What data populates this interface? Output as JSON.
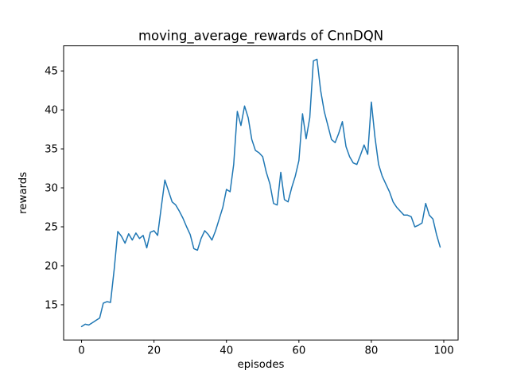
{
  "figure": {
    "background": "#ffffff",
    "text_color": "#000000"
  },
  "chart_data": {
    "type": "line",
    "title": "moving_average_rewards of CnnDQN",
    "xlabel": "episodes",
    "ylabel": "rewards",
    "grid": false,
    "legend": false,
    "xlim": [
      -4.95,
      103.95
    ],
    "ylim": [
      10.48,
      48.22
    ],
    "xticks": [
      0,
      20,
      40,
      60,
      80,
      100
    ],
    "yticks": [
      15,
      20,
      25,
      30,
      35,
      40,
      45
    ],
    "x_start": 0,
    "x_step": 1,
    "series": [
      {
        "name": "moving_average_rewards",
        "color": "#1f77b4",
        "values": [
          12.2,
          12.5,
          12.4,
          12.7,
          13.0,
          13.3,
          15.2,
          15.4,
          15.3,
          19.5,
          24.4,
          23.8,
          22.9,
          24.1,
          23.3,
          24.2,
          23.5,
          23.9,
          22.3,
          24.3,
          24.5,
          23.9,
          27.5,
          31.0,
          29.6,
          28.2,
          27.8,
          27.0,
          26.1,
          25.0,
          24.0,
          22.2,
          22.0,
          23.5,
          24.5,
          24.0,
          23.3,
          24.5,
          26.0,
          27.5,
          29.8,
          29.5,
          33.0,
          39.8,
          38.0,
          40.5,
          39.0,
          36.2,
          34.8,
          34.5,
          34.0,
          32.0,
          30.5,
          28.0,
          27.8,
          32.0,
          28.5,
          28.2,
          30.0,
          31.5,
          33.5,
          39.5,
          36.3,
          39.0,
          46.3,
          46.5,
          42.5,
          39.8,
          38.0,
          36.2,
          35.8,
          37.0,
          38.5,
          35.3,
          34.0,
          33.2,
          33.0,
          34.2,
          35.5,
          34.3,
          41.0,
          36.5,
          33.0,
          31.5,
          30.5,
          29.5,
          28.2,
          27.5,
          27.0,
          26.5,
          26.5,
          26.3,
          25.0,
          25.2,
          25.5,
          28.0,
          26.5,
          26.0,
          24.0,
          22.4
        ]
      }
    ]
  }
}
